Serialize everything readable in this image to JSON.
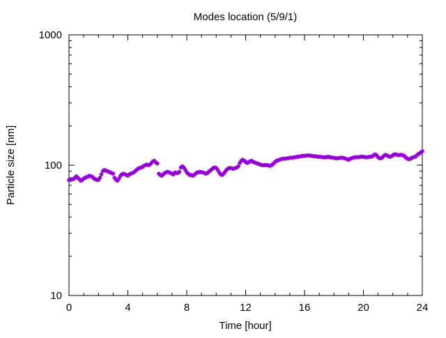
{
  "chart_data": {
    "type": "scatter",
    "title": "Modes location (5/9/1)",
    "xlabel": "Time [hour]",
    "ylabel": "Particle size [nm]",
    "xlim": [
      0,
      24
    ],
    "ylim": [
      10,
      1000
    ],
    "y_scale": "log",
    "grid": false,
    "x_ticks": [
      0,
      4,
      8,
      12,
      16,
      20,
      24
    ],
    "x_tick_labels": [
      "0",
      "4",
      "8",
      "12",
      "16",
      "20",
      "24"
    ],
    "y_ticks": [
      10,
      100,
      1000
    ],
    "y_tick_labels": [
      "10",
      "100",
      "1000"
    ],
    "marker_color": "#9400d3",
    "series": [
      {
        "x": [
          0.0,
          0.1,
          0.2,
          0.3,
          0.4,
          0.5,
          0.6,
          0.7,
          0.8,
          0.9,
          1.0,
          1.1,
          1.2,
          1.3,
          1.4,
          1.5,
          1.6,
          1.7,
          1.8,
          1.9,
          2.0,
          2.1,
          2.2,
          2.3,
          2.4,
          2.5,
          2.6,
          2.7,
          2.8,
          2.9,
          3.0,
          3.1,
          3.2,
          3.3,
          3.4,
          3.5,
          3.6,
          3.7,
          3.8,
          3.9,
          4.0,
          4.1,
          4.2,
          4.3,
          4.4,
          4.5,
          4.6,
          4.7,
          4.8,
          4.9,
          5.0,
          5.1,
          5.2,
          5.3,
          5.4,
          5.5,
          5.6,
          5.7,
          5.8,
          5.9,
          6.0,
          6.1,
          6.2,
          6.3,
          6.4,
          6.5,
          6.6,
          6.7,
          6.8,
          6.9,
          7.0,
          7.1,
          7.2,
          7.3,
          7.4,
          7.5,
          7.6,
          7.7,
          7.8,
          7.9,
          8.0,
          8.1,
          8.2,
          8.3,
          8.4,
          8.5,
          8.6,
          8.7,
          8.8,
          8.9,
          9.0,
          9.1,
          9.2,
          9.3,
          9.4,
          9.5,
          9.6,
          9.7,
          9.8,
          9.9,
          10.0,
          10.1,
          10.2,
          10.3,
          10.4,
          10.5,
          10.6,
          10.7,
          10.8,
          10.9,
          11.0,
          11.1,
          11.2,
          11.3,
          11.4,
          11.5,
          11.6,
          11.7,
          11.8,
          11.9,
          12.0,
          12.1,
          12.2,
          12.3,
          12.4,
          12.5,
          12.6,
          12.7,
          12.8,
          12.9,
          13.0,
          13.1,
          13.2,
          13.3,
          13.4,
          13.5,
          13.6,
          13.7,
          13.8,
          13.9,
          14.0,
          14.1,
          14.2,
          14.3,
          14.4,
          14.5,
          14.6,
          14.7,
          14.8,
          14.9,
          15.0,
          15.1,
          15.2,
          15.3,
          15.4,
          15.5,
          15.6,
          15.7,
          15.8,
          15.9,
          16.0,
          16.1,
          16.2,
          16.3,
          16.4,
          16.5,
          16.6,
          16.7,
          16.8,
          16.9,
          17.0,
          17.1,
          17.2,
          17.3,
          17.4,
          17.5,
          17.6,
          17.7,
          17.8,
          17.9,
          18.0,
          18.1,
          18.2,
          18.3,
          18.4,
          18.5,
          18.6,
          18.7,
          18.8,
          18.9,
          19.0,
          19.1,
          19.2,
          19.3,
          19.4,
          19.5,
          19.6,
          19.7,
          19.8,
          19.9,
          20.0,
          20.1,
          20.2,
          20.3,
          20.4,
          20.5,
          20.6,
          20.7,
          20.8,
          20.9,
          21.0,
          21.1,
          21.2,
          21.3,
          21.4,
          21.5,
          21.6,
          21.7,
          21.8,
          21.9,
          22.0,
          22.1,
          22.2,
          22.3,
          22.4,
          22.5,
          22.6,
          22.7,
          22.8,
          22.9,
          23.0,
          23.1,
          23.2,
          23.3,
          23.4,
          23.5,
          23.6,
          23.7,
          23.8,
          23.9,
          24.0
        ],
        "y": [
          77,
          77,
          78,
          78,
          80,
          82,
          80,
          78,
          76,
          77,
          79,
          80,
          81,
          82,
          83,
          82,
          81,
          79,
          78,
          77,
          77,
          80,
          85,
          90,
          92,
          91,
          90,
          89,
          88,
          87,
          86,
          80,
          77,
          76,
          79,
          83,
          85,
          86,
          85,
          84,
          83,
          85,
          86,
          87,
          88,
          90,
          92,
          94,
          95,
          96,
          97,
          99,
          100,
          101,
          100,
          101,
          104,
          107,
          108,
          105,
          103,
          86,
          84,
          83,
          85,
          87,
          88,
          89,
          88,
          87,
          86,
          85,
          88,
          87,
          87,
          89,
          96,
          98,
          96,
          92,
          88,
          86,
          84,
          84,
          83,
          84,
          86,
          88,
          88,
          89,
          88,
          88,
          87,
          86,
          87,
          89,
          91,
          93,
          95,
          96,
          95,
          92,
          88,
          85,
          84,
          86,
          89,
          92,
          94,
          95,
          95,
          94,
          94,
          95,
          96,
          98,
          104,
          108,
          110,
          108,
          106,
          104,
          105,
          107,
          108,
          106,
          105,
          104,
          103,
          102,
          101,
          100,
          100,
          100,
          100,
          100,
          99,
          99,
          101,
          103,
          106,
          108,
          109,
          110,
          111,
          112,
          112,
          112,
          113,
          113,
          114,
          114,
          114,
          115,
          115,
          116,
          116,
          117,
          117,
          118,
          118,
          118,
          119,
          119,
          118,
          118,
          117,
          117,
          117,
          116,
          116,
          116,
          115,
          115,
          115,
          115,
          116,
          115,
          115,
          114,
          114,
          113,
          113,
          113,
          114,
          114,
          114,
          113,
          112,
          111,
          110,
          112,
          113,
          114,
          115,
          115,
          115,
          115,
          116,
          116,
          116,
          115,
          115,
          115,
          116,
          116,
          117,
          119,
          121,
          119,
          115,
          113,
          113,
          115,
          118,
          120,
          119,
          117,
          116,
          117,
          119,
          121,
          121,
          120,
          119,
          120,
          120,
          119,
          117,
          114,
          112,
          111,
          112,
          114,
          115,
          116,
          118,
          121,
          123,
          125,
          128
        ]
      }
    ]
  }
}
